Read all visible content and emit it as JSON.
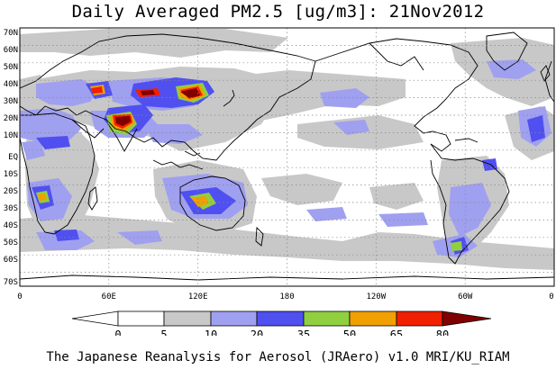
{
  "title": "Daily Averaged PM2.5 [ug/m3]: 21Nov2012",
  "map": {
    "latitude_labels": [
      "70N",
      "60N",
      "50N",
      "40N",
      "30N",
      "20N",
      "10N",
      "EQ",
      "10S",
      "20S",
      "30S",
      "40S",
      "50S",
      "60S",
      "70S"
    ],
    "longitude_labels": [
      "0",
      "60E",
      "120E",
      "180",
      "120W",
      "60W",
      "0"
    ],
    "grid": "dotted"
  },
  "colorbar": {
    "unit": "ug/m3",
    "levels": [
      "0",
      "5",
      "10",
      "20",
      "35",
      "50",
      "65",
      "80"
    ],
    "colors": [
      "#ffffff",
      "#c8c8c8",
      "#a0a0f0",
      "#5050f0",
      "#90d040",
      "#f0a000",
      "#f02000",
      "#800000"
    ]
  },
  "footer": "The Japanese Reanalysis for Aerosol (JRAero) v1.0 MRI/KU_RIAM"
}
